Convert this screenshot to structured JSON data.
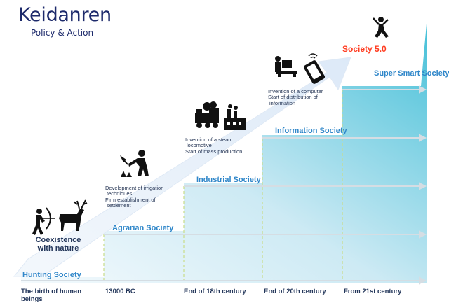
{
  "brand": {
    "title": "Keidanren",
    "subtitle": "Policy & Action"
  },
  "eras": [
    {
      "label": "Hunting Society"
    },
    {
      "label": "Agrarian Society"
    },
    {
      "label": "Industrial Society"
    },
    {
      "label": "Information Society"
    },
    {
      "label": "Super Smart Society"
    },
    {
      "label": "Society 5.0"
    }
  ],
  "timeline": [
    "The birth of human beings",
    "13000 BC",
    "End of 18th century",
    "End of 20th century",
    "From 21st century"
  ],
  "coexistence": "Coexistence with nature",
  "descriptions": {
    "agrarian": [
      "Development of irrigation",
      "techniques",
      "Firm establishment of",
      "settlement"
    ],
    "industrial": [
      "Invention of a steam",
      "locomotive",
      "Start of mass production"
    ],
    "information": [
      "Invention of a computer",
      "Start of distribution of",
      "information"
    ]
  },
  "icons": [
    "archer-icon",
    "deer-icon",
    "farmer-icon",
    "steam-locomotive-icon",
    "factory-icon",
    "computer-user-icon",
    "smartphone-icon",
    "jumping-person-icon"
  ],
  "colors": {
    "brand": "#1d2a6b",
    "era_label": "#2e86c9",
    "society50": "#ff3b1f",
    "stair_light": "#eaf6fb",
    "stair_dark": "#4fc3d9",
    "axis": "#b9c6cf"
  }
}
